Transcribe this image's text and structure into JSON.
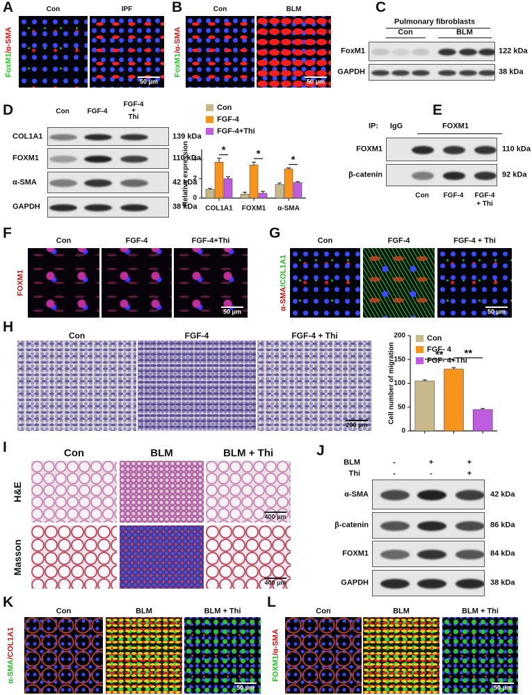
{
  "panels": {
    "A": {
      "letter": "A",
      "columns": [
        "Con",
        "IPF"
      ],
      "stain": [
        {
          "text": "FoxM1",
          "color": "#22cc22"
        },
        {
          "text": "/α-SMA",
          "color": "#dd1111"
        }
      ],
      "scale_bar": "50 μm"
    },
    "B": {
      "letter": "B",
      "columns": [
        "Con",
        "BLM"
      ],
      "stain": [
        {
          "text": "FoxM1",
          "color": "#22cc22"
        },
        {
          "text": "/α-SMA",
          "color": "#dd1111"
        }
      ],
      "scale_bar": "50 μm"
    },
    "C": {
      "letter": "C",
      "header": "Pulmonary fibroblasts",
      "groups": [
        "Con",
        "BLM"
      ],
      "rows": [
        {
          "label": "FoxM1",
          "size": "122 kDa"
        },
        {
          "label": "GAPDH",
          "size": "38 kDa"
        }
      ]
    },
    "D": {
      "letter": "D",
      "columns": [
        [
          "Con"
        ],
        [
          "FGF-4"
        ],
        [
          "FGF-4",
          "+",
          "Thi"
        ]
      ],
      "rows": [
        {
          "label": "COL1A1",
          "size": "139 kDa"
        },
        {
          "label": "FOXM1",
          "size": "110 kDa"
        },
        {
          "label": "α-SMA",
          "size": "42 kDa"
        },
        {
          "label": "GAPDH",
          "size": "38 kDa"
        }
      ]
    },
    "E": {
      "letter": "E",
      "ip_label": "IP:",
      "ip_groups": [
        "IgG",
        "FOXM1"
      ],
      "rows": [
        {
          "label": "FOXM1",
          "size": "110 kDa"
        },
        {
          "label": "β-catenin",
          "size": "92 kDa"
        }
      ],
      "columns": [
        [
          "Con"
        ],
        [
          "FGF-4"
        ],
        [
          "FGF-4",
          "+ Thi"
        ]
      ]
    },
    "F": {
      "letter": "F",
      "columns": [
        "Con",
        "FGF-4",
        "FGF-4+Thi"
      ],
      "stain": [
        {
          "text": "FOXM1",
          "color": "#cc1111"
        }
      ],
      "scale_bar": "50 μm"
    },
    "G": {
      "letter": "G",
      "columns": [
        "Con",
        "FGF-4",
        "FGF-4 + Thi"
      ],
      "stain": [
        {
          "text": "α-SMA",
          "color": "#cc1111"
        },
        {
          "text": "/COL1A1",
          "color": "#22bb22"
        }
      ],
      "scale_bar": "50 μm"
    },
    "H": {
      "letter": "H",
      "columns": [
        "Con",
        "FGF-4",
        "FGF-4 + Thi"
      ],
      "scale_bar": "200 μm"
    },
    "I": {
      "letter": "I",
      "columns": [
        "Con",
        "BLM",
        "BLM + Thi"
      ],
      "rows": [
        "H&E",
        "Masson"
      ],
      "scale_bar": "400 μm"
    },
    "J": {
      "letter": "J",
      "treatments": [
        {
          "label": "BLM",
          "signs": [
            "-",
            "+",
            "+"
          ]
        },
        {
          "label": "Thi",
          "signs": [
            "-",
            "-",
            "+"
          ]
        }
      ],
      "rows": [
        {
          "label": "α-SMA",
          "size": "42 kDa"
        },
        {
          "label": "β-catenin",
          "size": "86 kDa"
        },
        {
          "label": "FOXM1",
          "size": "84 kDa"
        },
        {
          "label": "GAPDH",
          "size": "38 kDa"
        }
      ]
    },
    "K": {
      "letter": "K",
      "columns": [
        "Con",
        "BLM",
        "BLM + Thi"
      ],
      "stain": [
        {
          "text": "α-SMA",
          "color": "#22bb22"
        },
        {
          "text": "/COL1A1",
          "color": "#cc1111"
        }
      ],
      "scale_bar": "50 μm"
    },
    "L": {
      "letter": "L",
      "columns": [
        "Con",
        "BLM",
        "BLM + Thi"
      ],
      "stain": [
        {
          "text": "FOXM1",
          "color": "#22bb22"
        },
        {
          "text": "/α-SMA",
          "color": "#cc1111"
        }
      ],
      "scale_bar": "50 μm"
    }
  },
  "chart_data": [
    {
      "type": "bar",
      "ylabel": "Relative expression",
      "categories": [
        "COL1A1",
        "FOXM1",
        "α-SMA"
      ],
      "series": [
        {
          "name": "Con",
          "color": "#c8b98a",
          "values": [
            0.9,
            0.4,
            1.4
          ],
          "errors": [
            0.1,
            0.2,
            0.15
          ]
        },
        {
          "name": "FGF-4",
          "color": "#f7941d",
          "values": [
            3.7,
            3.4,
            3.0
          ],
          "errors": [
            0.4,
            0.3,
            0.1
          ]
        },
        {
          "name": "FGF-4+Thi",
          "color": "#c05ce0",
          "values": [
            2.0,
            0.5,
            1.6
          ],
          "errors": [
            0.2,
            0.2,
            0.1
          ]
        }
      ],
      "ylim": [
        0,
        5
      ],
      "yticks": [
        0,
        2,
        4
      ],
      "annotations": [
        "*",
        "*",
        "*"
      ]
    },
    {
      "type": "bar",
      "ylabel": "Cell number of migration",
      "categories": [
        null,
        null,
        null
      ],
      "values": [
        105,
        130,
        45
      ],
      "errors": [
        2,
        3,
        2
      ],
      "colors": [
        "#c8b98a",
        "#f7941d",
        "#c05ce0"
      ],
      "legend": [
        "Con",
        "FGF- 4",
        "FGF- 4+Thi"
      ],
      "ylim": [
        0,
        200
      ],
      "yticks": [
        0,
        50,
        100,
        150,
        200
      ],
      "annotations": [
        "**",
        "**"
      ]
    }
  ]
}
